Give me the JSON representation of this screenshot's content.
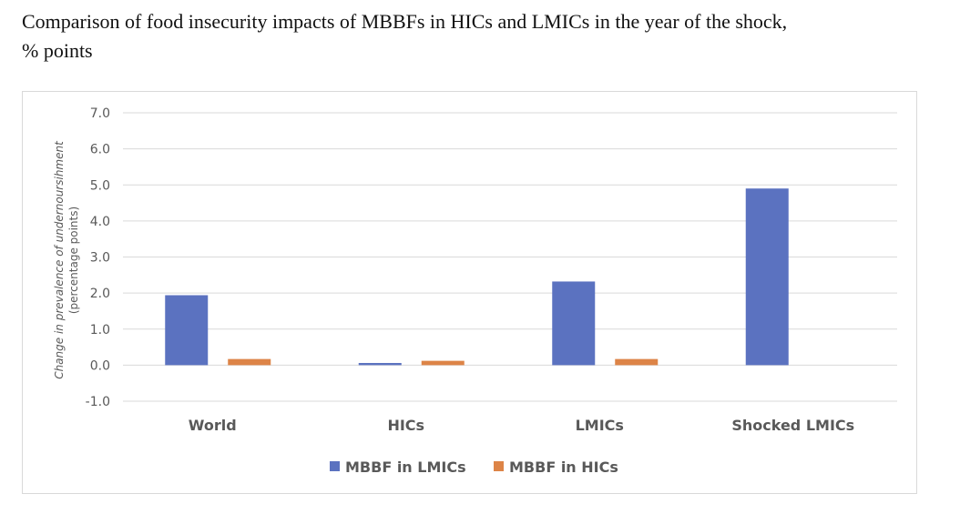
{
  "title_line1": "Comparison of food insecurity impacts of MBBFs in HICs and LMICs in the year of the shock,",
  "title_line2": "% points",
  "chart_data": {
    "type": "bar",
    "title": "Comparison of food insecurity impacts of MBBFs in HICs and LMICs in the year of the shock, % points",
    "xlabel": "",
    "ylabel": "Change in prevalence of undernoursihment",
    "ylabel_sub": "(percentage points)",
    "ylim": [
      -1.0,
      7.0
    ],
    "yticks": [
      -1.0,
      0.0,
      1.0,
      2.0,
      3.0,
      4.0,
      5.0,
      6.0,
      7.0
    ],
    "ytick_labels": [
      "-1.0",
      "0.0",
      "1.0",
      "2.0",
      "3.0",
      "4.0",
      "5.0",
      "6.0",
      "7.0"
    ],
    "grid": true,
    "legend_position": "bottom",
    "categories": [
      "World",
      "HICs",
      "LMICs",
      "Shocked LMICs"
    ],
    "series": [
      {
        "name": "MBBF in LMICs",
        "color": "#5b72c0",
        "values": [
          1.94,
          0.06,
          2.32,
          4.9
        ]
      },
      {
        "name": "MBBF in HICs",
        "color": "#dd8447",
        "values": [
          0.17,
          0.12,
          0.17,
          null
        ]
      }
    ]
  }
}
